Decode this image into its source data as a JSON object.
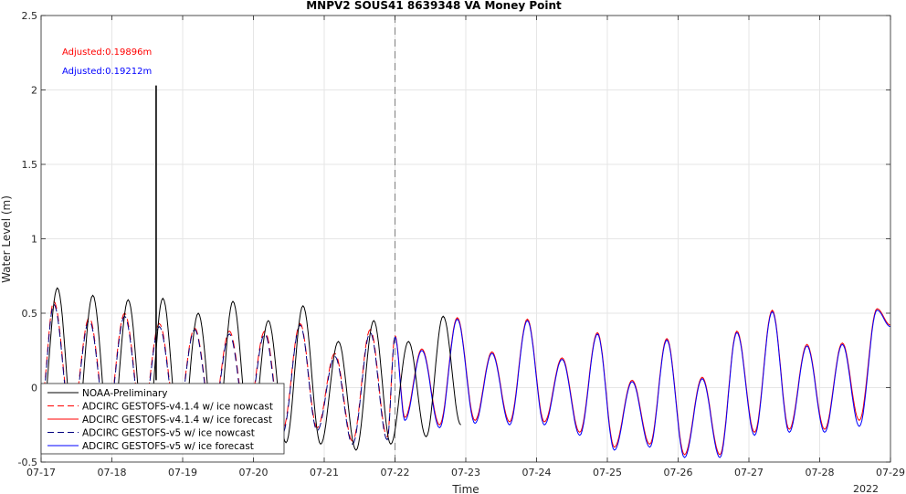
{
  "chart_data": {
    "type": "line",
    "title": "MNPV2 SOUS41 8639348 VA Money Point",
    "xlabel": "Time",
    "ylabel": "Water Level (m)",
    "xlim": [
      "2022-07-17 00:00",
      "2022-07-29 00:00"
    ],
    "ylim": [
      -0.5,
      2.5
    ],
    "xticklabels": [
      "07-17",
      "07-18",
      "07-19",
      "07-20",
      "07-21",
      "07-22",
      "07-23",
      "07-24",
      "07-25",
      "07-26",
      "07-27",
      "07-28",
      "07-29"
    ],
    "yticklabels": [
      "-0.5",
      "0",
      "0.5",
      "1",
      "1.5",
      "2",
      "2.5"
    ],
    "year_label": "2022",
    "grid": true,
    "legend_location": "bottom-left",
    "nowcast_forecast_divider": "2022-07-22 00:00",
    "annotations": [
      {
        "text": "Adjusted:0.19896m",
        "color": "#ff0000"
      },
      {
        "text": "Adjusted:0.19212m",
        "color": "#0000ff"
      }
    ],
    "obs_spike": {
      "time": "2022-07-18 15:00",
      "value": 2.03
    },
    "legend": [
      {
        "label": "NOAA-Preliminary",
        "color": "#000000",
        "dash": "solid"
      },
      {
        "label": "ADCIRC GESTOFS-v4.1.4 w/ ice nowcast",
        "color": "#ff0000",
        "dash": "dashed"
      },
      {
        "label": "ADCIRC GESTOFS-v4.1.4 w/ ice forecast",
        "color": "#ff0000",
        "dash": "solid"
      },
      {
        "label": "ADCIRC GESTOFS-v5 w/ ice nowcast",
        "color": "#000080",
        "dash": "dashed"
      },
      {
        "label": "ADCIRC GESTOFS-v5 w/ ice forecast",
        "color": "#0000ff",
        "dash": "solid"
      }
    ],
    "series": [
      {
        "name": "NOAA-Preliminary",
        "color": "#000000",
        "x_days": [
          0.0,
          0.23,
          0.48,
          0.73,
          0.98,
          1.23,
          1.48,
          1.72,
          1.97,
          2.22,
          2.47,
          2.71,
          2.96,
          3.21,
          3.46,
          3.7,
          3.95,
          4.2,
          4.45,
          4.7,
          4.94,
          5.19,
          5.44,
          5.68,
          5.93
        ],
        "y": [
          -0.25,
          0.67,
          -0.4,
          0.62,
          -0.4,
          0.59,
          -0.42,
          0.6,
          -0.41,
          0.5,
          -0.4,
          0.58,
          -0.38,
          0.45,
          -0.37,
          0.55,
          -0.38,
          0.31,
          -0.42,
          0.45,
          -0.38,
          0.31,
          -0.33,
          0.48,
          -0.25
        ]
      },
      {
        "name": "ADCIRC GESTOFS-v4.1.4 w/ ice nowcast",
        "color": "#ff0000",
        "x_days": [
          0.0,
          0.18,
          0.43,
          0.68,
          0.93,
          1.18,
          1.43,
          1.67,
          1.92,
          2.17,
          2.42,
          2.66,
          2.91,
          3.16,
          3.41,
          3.66,
          3.9,
          4.15,
          4.4,
          4.65,
          4.89,
          5.0
        ],
        "y": [
          -0.1,
          0.58,
          -0.22,
          0.47,
          -0.22,
          0.5,
          -0.2,
          0.43,
          -0.2,
          0.4,
          -0.2,
          0.38,
          -0.22,
          0.38,
          -0.29,
          0.43,
          -0.27,
          0.23,
          -0.36,
          0.39,
          -0.33,
          0.35
        ]
      },
      {
        "name": "ADCIRC GESTOFS-v4.1.4 w/ ice forecast",
        "color": "#ff0000",
        "x_days": [
          5.0,
          5.14,
          5.38,
          5.63,
          5.88,
          6.13,
          6.37,
          6.62,
          6.87,
          7.11,
          7.36,
          7.61,
          7.86,
          8.1,
          8.35,
          8.6,
          8.84,
          9.09,
          9.34,
          9.59,
          9.83,
          10.08,
          10.33,
          10.57,
          10.82,
          11.07,
          11.32,
          11.56,
          11.81,
          12.0
        ],
        "y": [
          0.35,
          -0.2,
          0.26,
          -0.25,
          0.47,
          -0.22,
          0.24,
          -0.23,
          0.46,
          -0.23,
          0.2,
          -0.3,
          0.37,
          -0.4,
          0.05,
          -0.38,
          0.33,
          -0.45,
          0.07,
          -0.45,
          0.38,
          -0.3,
          0.52,
          -0.28,
          0.29,
          -0.28,
          0.3,
          -0.22,
          0.53,
          0.42
        ]
      },
      {
        "name": "ADCIRC GESTOFS-v5 w/ ice nowcast",
        "color": "#000080",
        "x_days": [
          0.0,
          0.18,
          0.43,
          0.68,
          0.93,
          1.18,
          1.43,
          1.67,
          1.92,
          2.17,
          2.42,
          2.66,
          2.91,
          3.16,
          3.41,
          3.66,
          3.9,
          4.15,
          4.4,
          4.65,
          4.89,
          5.0
        ],
        "y": [
          -0.12,
          0.56,
          -0.24,
          0.45,
          -0.24,
          0.48,
          -0.22,
          0.41,
          -0.22,
          0.39,
          -0.22,
          0.36,
          -0.24,
          0.36,
          -0.31,
          0.42,
          -0.29,
          0.21,
          -0.38,
          0.37,
          -0.35,
          0.34
        ]
      },
      {
        "name": "ADCIRC GESTOFS-v5 w/ ice forecast",
        "color": "#0000ff",
        "x_days": [
          5.0,
          5.14,
          5.38,
          5.63,
          5.88,
          6.13,
          6.37,
          6.62,
          6.87,
          7.11,
          7.36,
          7.61,
          7.86,
          8.1,
          8.35,
          8.6,
          8.84,
          9.09,
          9.34,
          9.59,
          9.83,
          10.08,
          10.33,
          10.57,
          10.82,
          11.07,
          11.32,
          11.56,
          11.81,
          12.0
        ],
        "y": [
          0.34,
          -0.22,
          0.25,
          -0.27,
          0.46,
          -0.24,
          0.23,
          -0.25,
          0.45,
          -0.25,
          0.19,
          -0.32,
          0.36,
          -0.42,
          0.04,
          -0.4,
          0.32,
          -0.47,
          0.06,
          -0.47,
          0.37,
          -0.32,
          0.51,
          -0.3,
          0.28,
          -0.3,
          0.29,
          -0.26,
          0.52,
          0.41
        ]
      }
    ]
  }
}
